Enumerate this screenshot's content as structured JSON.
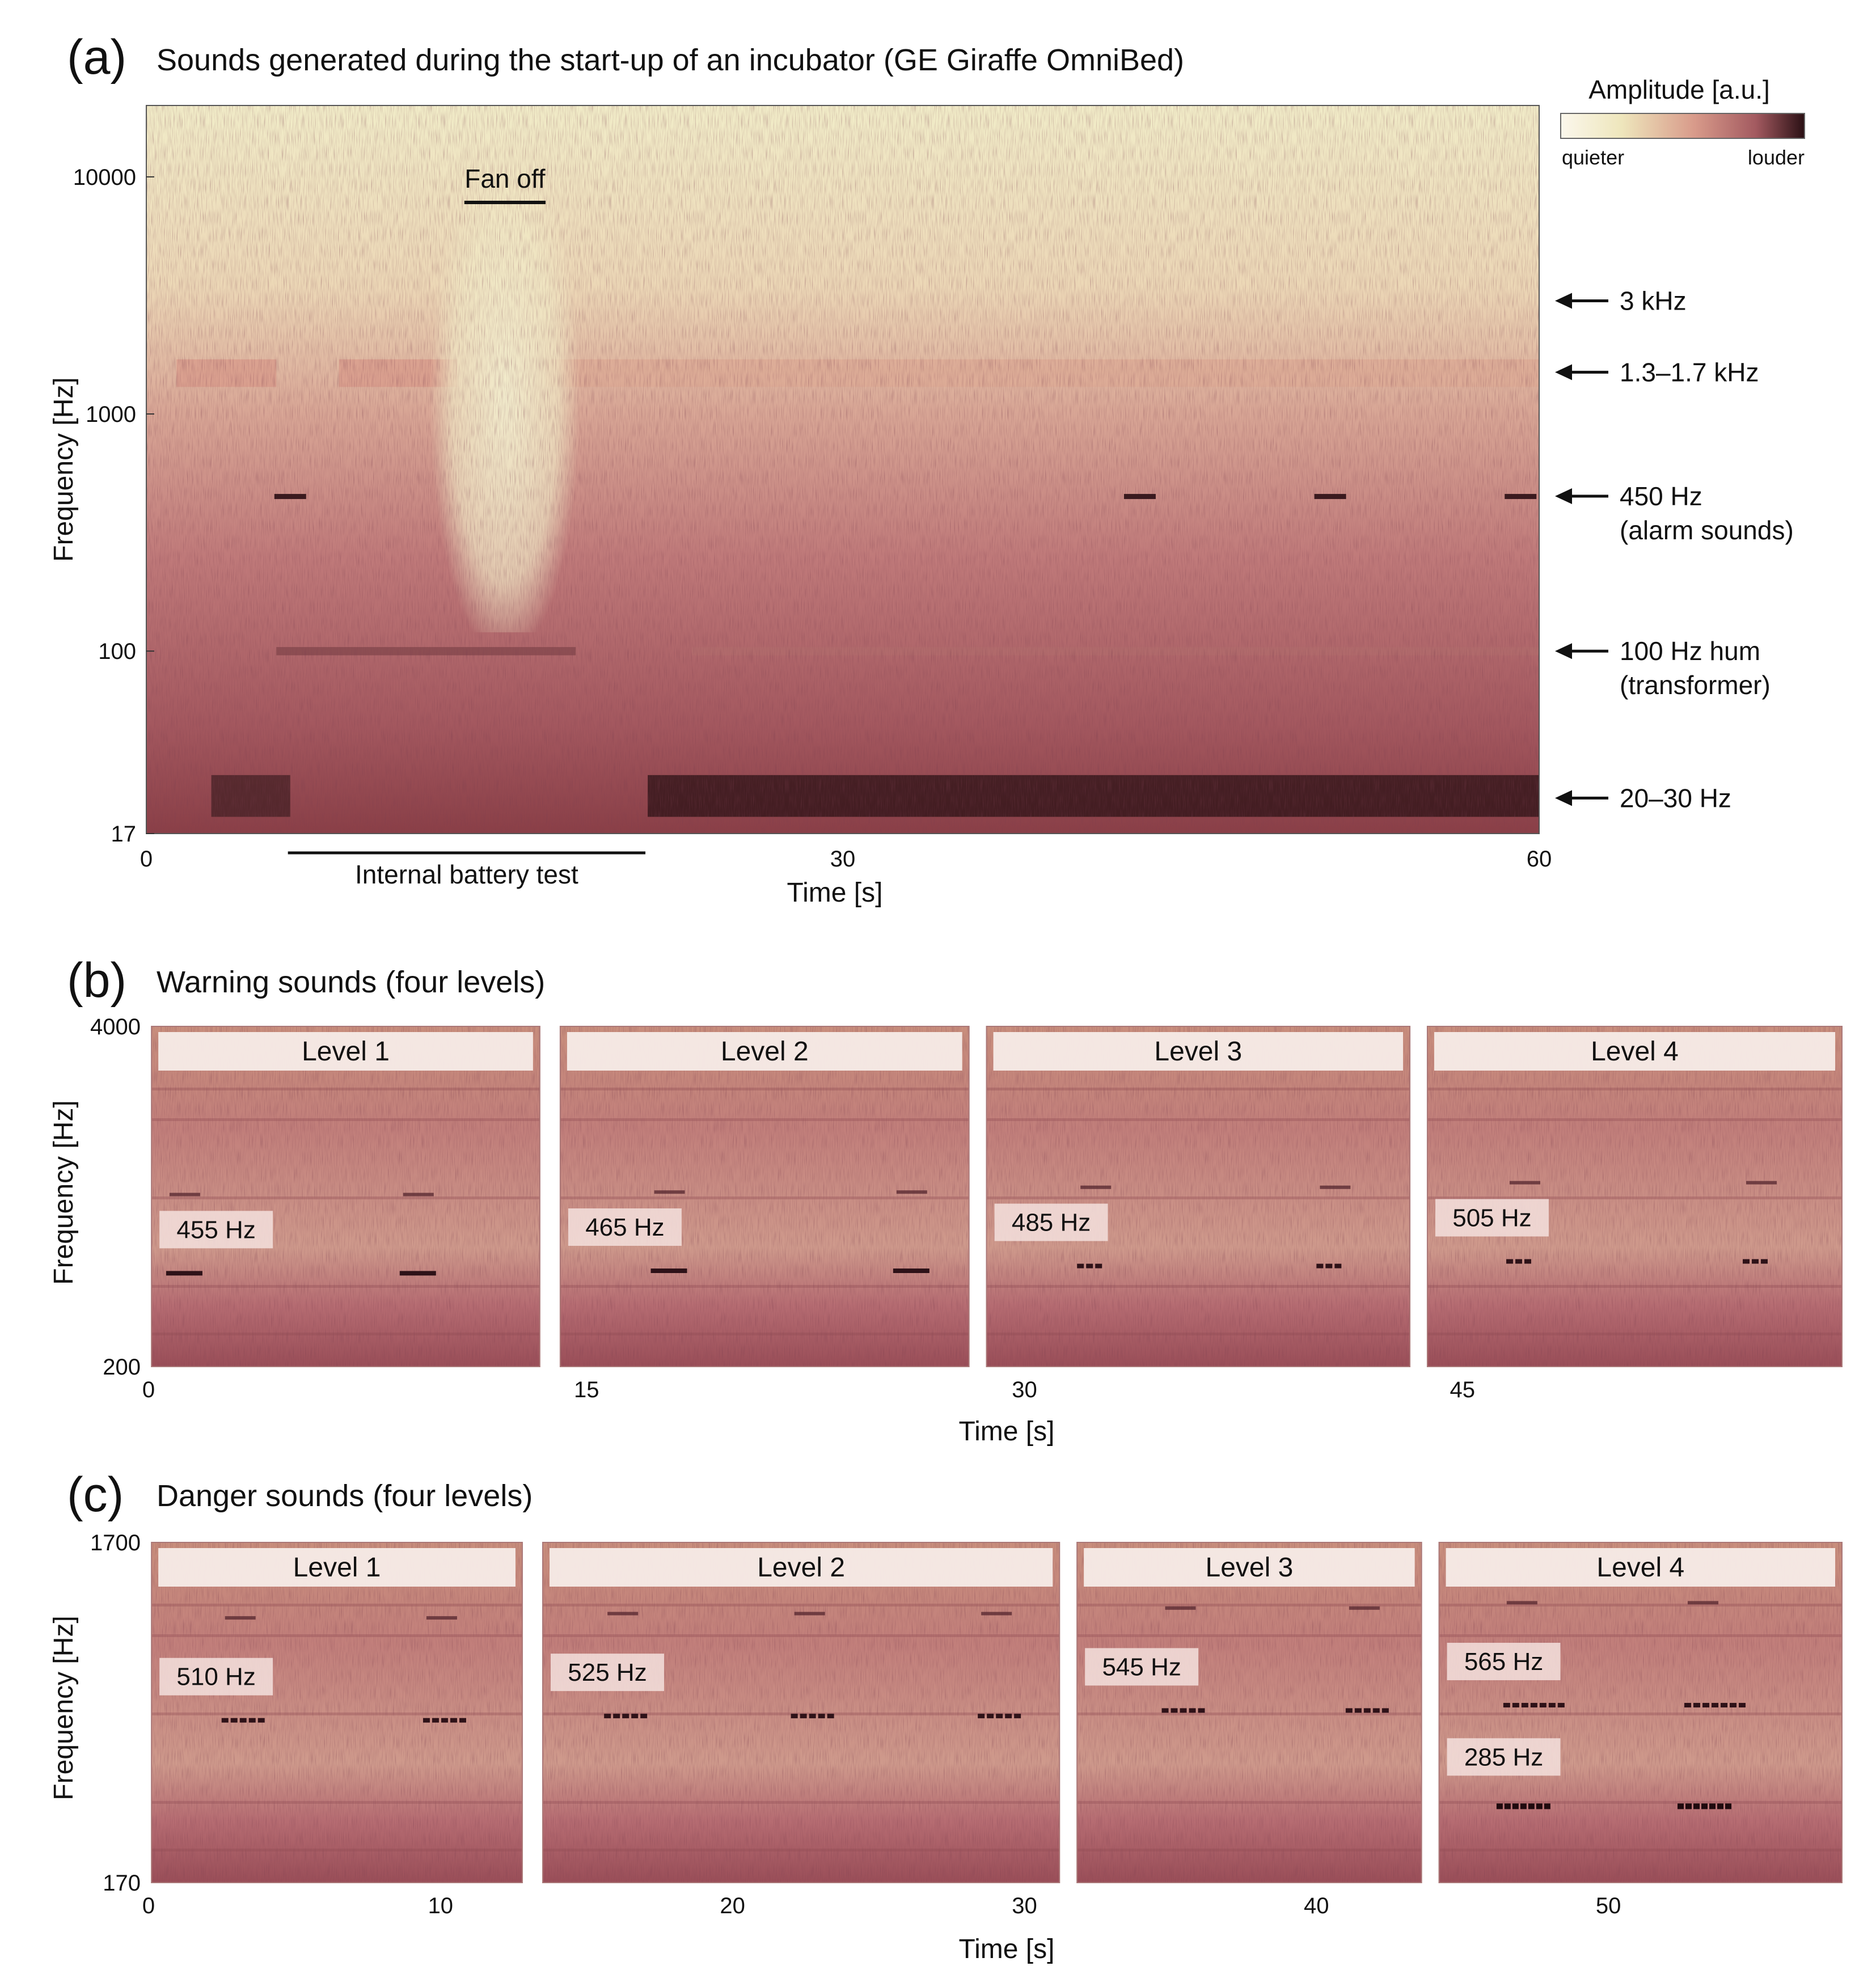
{
  "figure": {
    "background": "#ffffff"
  },
  "colorbar": {
    "title": "Amplitude [a.u.]",
    "low_label": "quieter",
    "high_label": "louder",
    "colors": [
      "#fbf7ec",
      "#eee6bc",
      "#d89a8a",
      "#a35a60",
      "#2a1014"
    ]
  },
  "chart_data": [
    {
      "id": "a",
      "type": "heatmap",
      "panel_label": "(a)",
      "title": "Sounds generated during the start-up of an incubator (GE Giraffe OmniBed)",
      "xlabel": "Time [s]",
      "ylabel": "Frequency [Hz]",
      "xlim": [
        0,
        60
      ],
      "ylim": [
        17,
        20000
      ],
      "yscale": "log",
      "xticks": [
        0,
        30,
        60
      ],
      "yticks": [
        17,
        100,
        1000,
        10000
      ],
      "annotations": [
        {
          "label": "Fan off",
          "x_start": 13.7,
          "x_end": 17.2,
          "y": 7800
        },
        {
          "label": "Internal battery test",
          "x_start": 6.1,
          "x_end": 21.5
        }
      ],
      "arrows": [
        {
          "line1": "3 kHz",
          "line2": "",
          "freq": 3000
        },
        {
          "line1": "1.3–1.7 kHz",
          "line2": "",
          "freq": 1500
        },
        {
          "line1": "450 Hz",
          "line2": "(alarm sounds)",
          "freq": 450
        },
        {
          "line1": "100 Hz hum",
          "line2": "(transformer)",
          "freq": 100
        },
        {
          "line1": "20–30 Hz",
          "line2": "",
          "freq": 24
        }
      ],
      "bands": [
        {
          "f_lo": 20,
          "f_hi": 30,
          "t_start": 2.8,
          "t_end": 6.2,
          "level": 0.95
        },
        {
          "f_lo": 20,
          "f_hi": 30,
          "t_start": 21.6,
          "t_end": 60,
          "level": 1.0
        },
        {
          "f_lo": 96,
          "f_hi": 104,
          "t_start": 5.6,
          "t_end": 18.5,
          "level": 0.82
        },
        {
          "f_lo": 96,
          "f_hi": 104,
          "t_start": 23.5,
          "t_end": 60,
          "level": 0.68
        },
        {
          "f_lo": 1300,
          "f_hi": 1700,
          "t_start": 1.3,
          "t_end": 5.6,
          "level": 0.5
        },
        {
          "f_lo": 1300,
          "f_hi": 1700,
          "t_start": 8.3,
          "t_end": 13.4,
          "level": 0.5
        },
        {
          "f_lo": 1300,
          "f_hi": 1700,
          "t_start": 17.2,
          "t_end": 60,
          "level": 0.45
        }
      ],
      "alarm_marks": [
        {
          "t": 6.2,
          "f": 450
        },
        {
          "t": 42.8,
          "f": 450
        },
        {
          "t": 51.0,
          "f": 450
        },
        {
          "t": 59.2,
          "f": 450
        }
      ]
    },
    {
      "id": "b",
      "type": "heatmap",
      "panel_label": "(b)",
      "title": "Warning sounds (four levels)",
      "xlabel": "Time [s]",
      "ylabel": "Frequency [Hz]",
      "xlim": [
        0,
        58
      ],
      "ylim": [
        200,
        4000
      ],
      "xticks": [
        0,
        15,
        30,
        45
      ],
      "yticks": [
        200,
        4000
      ],
      "levels": [
        {
          "label": "Level 1",
          "t_start": 0.1,
          "t_end": 13.4,
          "tone_label": "455 Hz",
          "freq": 455,
          "events": [
            1.3,
            9.3
          ],
          "pulses": 1
        },
        {
          "label": "Level 2",
          "t_start": 14.1,
          "t_end": 28.1,
          "tone_label": "465 Hz",
          "freq": 465,
          "events": [
            17.9,
            26.2
          ],
          "pulses": 1
        },
        {
          "label": "Level 3",
          "t_start": 28.7,
          "t_end": 43.2,
          "tone_label": "485 Hz",
          "freq": 485,
          "events": [
            32.5,
            40.7
          ],
          "pulses": 3
        },
        {
          "label": "Level 4",
          "t_start": 43.8,
          "t_end": 58,
          "tone_label": "505 Hz",
          "freq": 505,
          "events": [
            47.2,
            55.3
          ],
          "pulses": 3
        }
      ]
    },
    {
      "id": "c",
      "type": "heatmap",
      "panel_label": "(c)",
      "title": "Danger sounds (four levels)",
      "xlabel": "Time [s]",
      "ylabel": "Frequency [Hz]",
      "xlim": [
        0,
        58
      ],
      "ylim": [
        170,
        1700
      ],
      "xticks": [
        0,
        10,
        20,
        30,
        40,
        50
      ],
      "yticks": [
        170,
        1700
      ],
      "levels": [
        {
          "label": "Level 1",
          "t_start": 0.1,
          "t_end": 12.8,
          "tone_label": "510 Hz",
          "freq": 510,
          "events": [
            3.2,
            10.1
          ],
          "pulses": 5
        },
        {
          "label": "Level 2",
          "t_start": 13.5,
          "t_end": 31.2,
          "tone_label": "525 Hz",
          "freq": 525,
          "events": [
            16.3,
            22.7,
            29.1
          ],
          "pulses": 5
        },
        {
          "label": "Level 3",
          "t_start": 31.8,
          "t_end": 43.6,
          "tone_label": "545 Hz",
          "freq": 545,
          "events": [
            35.4,
            41.7
          ],
          "pulses": 5
        },
        {
          "label": "Level 4",
          "t_start": 44.2,
          "t_end": 58,
          "tone_label": "565 Hz",
          "tone_label_2": "285 Hz",
          "freq": 565,
          "freq2": 285,
          "events": [
            47.1,
            53.3
          ],
          "pulses": 7
        }
      ]
    }
  ]
}
